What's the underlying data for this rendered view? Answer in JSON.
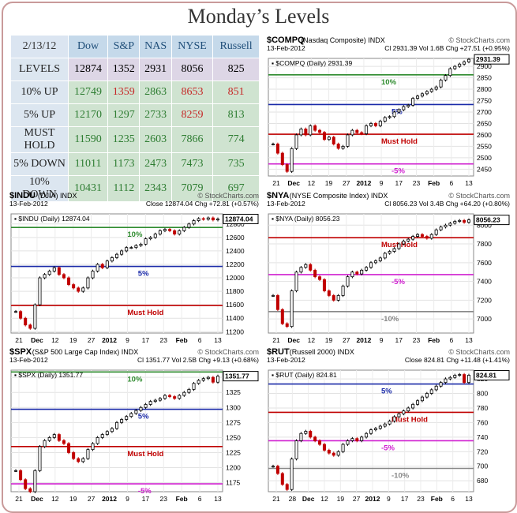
{
  "title": "Monday’s Levels",
  "table": {
    "date": "2/13/12",
    "columns": [
      "Dow",
      "S&P",
      "NAS",
      "NYSE",
      "Russell"
    ],
    "rows": [
      {
        "label": "LEVELS",
        "values": [
          "12874",
          "1352",
          "2931",
          "8056",
          "825"
        ],
        "colors": [
          "#000",
          "#000",
          "#000",
          "#000",
          "#000"
        ]
      },
      {
        "label": "10% UP",
        "values": [
          "12749",
          "1359",
          "2863",
          "8653",
          "851"
        ],
        "colors": [
          "#2e7d32",
          "#c62828",
          "#2e7d32",
          "#c62828",
          "#c62828"
        ]
      },
      {
        "label": "5% UP",
        "values": [
          "12170",
          "1297",
          "2733",
          "8259",
          "813"
        ],
        "colors": [
          "#2e7d32",
          "#2e7d32",
          "#2e7d32",
          "#c62828",
          "#2e7d32"
        ]
      },
      {
        "label": "MUST HOLD",
        "values": [
          "11590",
          "1235",
          "2603",
          "7866",
          "774"
        ],
        "colors": [
          "#2e7d32",
          "#2e7d32",
          "#2e7d32",
          "#2e7d32",
          "#2e7d32"
        ]
      },
      {
        "label": "5% DOWN",
        "values": [
          "11011",
          "1173",
          "2473",
          "7473",
          "735"
        ],
        "colors": [
          "#2e7d32",
          "#2e7d32",
          "#2e7d32",
          "#2e7d32",
          "#2e7d32"
        ]
      },
      {
        "label": "10% DOWN",
        "values": [
          "10431",
          "1112",
          "2343",
          "7079",
          "697"
        ],
        "colors": [
          "#2e7d32",
          "#2e7d32",
          "#2e7d32",
          "#2e7d32",
          "#2e7d32"
        ]
      }
    ]
  },
  "chart_data": [
    {
      "type": "line",
      "id": "compq",
      "title": "$COMPQ",
      "subtitle": "(Nasdaq Composite)",
      "suffix": "INDX",
      "brand": "© StockCharts.com",
      "date": "13-Feb-2012",
      "stats": "Cl 2931.39  Vol 1.6B  Chg +27.51 (+0.95%)",
      "legend": "$COMPQ (Daily) 2931.39",
      "last_value": "2931.39",
      "ylim": [
        2420,
        2935
      ],
      "yticks": [
        2450,
        2500,
        2550,
        2600,
        2650,
        2700,
        2750,
        2800,
        2850,
        2900
      ],
      "xticks": [
        "21",
        "Dec",
        "12",
        "19",
        "27",
        "2012",
        "9",
        "17",
        "23",
        "Feb",
        "6",
        "13"
      ],
      "levels": [
        {
          "label": "10%",
          "value": 2863,
          "color": "#2e8b2e"
        },
        {
          "label": "5%",
          "value": 2733,
          "color": "#1a2aa8"
        },
        {
          "label": "Must Hold",
          "value": 2603,
          "color": "#c00000"
        },
        {
          "label": "-5%",
          "value": 2473,
          "color": "#d020d0"
        }
      ],
      "series": [
        {
          "values": [
            2560,
            2520,
            2470,
            2440,
            2540,
            2600,
            2626,
            2600,
            2640,
            2620,
            2611,
            2580,
            2590,
            2560,
            2541,
            2550,
            2600,
            2620,
            2610,
            2605,
            2640,
            2650,
            2640,
            2660,
            2676,
            2680,
            2700,
            2710,
            2724,
            2730,
            2760,
            2770,
            2780,
            2790,
            2800,
            2810,
            2840,
            2860,
            2890,
            2900,
            2910,
            2920,
            2931
          ]
        }
      ]
    },
    {
      "type": "line",
      "id": "indu",
      "title": "$INDU",
      "subtitle": "(DJIA)",
      "suffix": "INDX",
      "brand": "© StockCharts.com",
      "date": "13-Feb-2012",
      "stats": "Close 12874.04  Chg +72.81 (+0.57%)",
      "legend": "$INDU (Daily) 12874.04",
      "last_value": "12874.04",
      "ylim": [
        11180,
        12950
      ],
      "yticks": [
        11200,
        11400,
        11600,
        11800,
        12000,
        12200,
        12400,
        12600,
        12800
      ],
      "xticks": [
        "21",
        "Dec",
        "12",
        "19",
        "27",
        "2012",
        "9",
        "17",
        "23",
        "Feb",
        "6",
        "13"
      ],
      "levels": [
        {
          "label": "10%",
          "value": 12749,
          "color": "#2e8b2e"
        },
        {
          "label": "5%",
          "value": 12170,
          "color": "#1a2aa8"
        },
        {
          "label": "Must Hold",
          "value": 11590,
          "color": "#c00000"
        }
      ],
      "series": [
        {
          "values": [
            11500,
            11400,
            11300,
            11250,
            11600,
            12000,
            12050,
            12100,
            12150,
            12050,
            12000,
            11900,
            11850,
            11800,
            11850,
            12000,
            12100,
            12200,
            12150,
            12250,
            12300,
            12350,
            12400,
            12450,
            12450,
            12480,
            12500,
            12580,
            12600,
            12650,
            12700,
            12720,
            12700,
            12650,
            12700,
            12750,
            12800,
            12850,
            12880,
            12870,
            12890,
            12860,
            12874
          ]
        }
      ]
    },
    {
      "type": "line",
      "id": "nya",
      "title": "$NYA",
      "subtitle": "(NYSE Composite Index)",
      "suffix": "INDX",
      "brand": "© StockCharts.com",
      "date": "13-Feb-2012",
      "stats": "Cl 8056.23  Vol 3.4B  Chg +64.20 (+0.80%)",
      "legend": "$NYA (Daily) 8056.23",
      "last_value": "8056.23",
      "ylim": [
        6850,
        8120
      ],
      "yticks": [
        7000,
        7200,
        7400,
        7600,
        7800,
        8000
      ],
      "xticks": [
        "21",
        "Dec",
        "12",
        "19",
        "27",
        "2012",
        "9",
        "17",
        "23",
        "Feb",
        "6",
        "13"
      ],
      "levels": [
        {
          "label": "Must Hold",
          "value": 7866,
          "color": "#c00000"
        },
        {
          "label": "-5%",
          "value": 7473,
          "color": "#d020d0"
        },
        {
          "label": "-10%",
          "value": 7079,
          "color": "#888888"
        }
      ],
      "series": [
        {
          "values": [
            7250,
            7100,
            6950,
            6920,
            7300,
            7500,
            7550,
            7580,
            7520,
            7450,
            7420,
            7300,
            7250,
            7200,
            7250,
            7350,
            7450,
            7500,
            7480,
            7520,
            7550,
            7600,
            7620,
            7650,
            7700,
            7720,
            7750,
            7800,
            7830,
            7850,
            7880,
            7900,
            7880,
            7860,
            7900,
            7950,
            7980,
            8000,
            8020,
            8040,
            8050,
            8030,
            8056
          ]
        }
      ]
    },
    {
      "type": "line",
      "id": "spx",
      "title": "$SPX",
      "subtitle": "(S&P 500 Large Cap Index)",
      "suffix": "INDX",
      "brand": "© StockCharts.com",
      "date": "13-Feb-2012",
      "stats": "Cl 1351.77  Vol 2.5B  Chg +9.13 (+0.68%)",
      "legend": "$SPX (Daily) 1351.77",
      "last_value": "1351.77",
      "ylim": [
        1160,
        1362
      ],
      "yticks": [
        1175,
        1200,
        1225,
        1250,
        1275,
        1300,
        1325,
        1350
      ],
      "xticks": [
        "21",
        "Dec",
        "12",
        "19",
        "27",
        "2012",
        "9",
        "17",
        "23",
        "Feb",
        "6",
        "13"
      ],
      "levels": [
        {
          "label": "10%",
          "value": 1359,
          "color": "#2e8b2e"
        },
        {
          "label": "5%",
          "value": 1297,
          "color": "#1a2aa8"
        },
        {
          "label": "Must Hold",
          "value": 1235,
          "color": "#c00000"
        },
        {
          "label": "-5%",
          "value": 1173,
          "color": "#d020d0"
        }
      ],
      "series": [
        {
          "values": [
            1195,
            1180,
            1165,
            1160,
            1195,
            1235,
            1245,
            1250,
            1255,
            1245,
            1240,
            1225,
            1215,
            1210,
            1215,
            1230,
            1240,
            1250,
            1255,
            1260,
            1265,
            1275,
            1280,
            1285,
            1290,
            1295,
            1300,
            1305,
            1310,
            1312,
            1315,
            1320,
            1318,
            1315,
            1320,
            1325,
            1330,
            1340,
            1345,
            1348,
            1350,
            1342,
            1352
          ]
        }
      ]
    },
    {
      "type": "line",
      "id": "rut",
      "title": "$RUT",
      "subtitle": "(Russell 2000)",
      "suffix": "INDX",
      "brand": "© StockCharts.com",
      "date": "13-Feb-2012",
      "stats": "Close 824.81  Chg +11.48 (+1.41%)",
      "legend": "$RUT (Daily) 824.81",
      "last_value": "824.81",
      "ylim": [
        665,
        832
      ],
      "yticks": [
        680,
        700,
        720,
        740,
        760,
        780,
        800,
        820
      ],
      "xticks": [
        "21",
        "28",
        "Dec",
        "12",
        "19",
        "27",
        "2012",
        "9",
        "17",
        "23",
        "Feb",
        "6",
        "13"
      ],
      "levels": [
        {
          "label": "5%",
          "value": 813,
          "color": "#1a2aa8"
        },
        {
          "label": "Must Hold",
          "value": 774,
          "color": "#c00000"
        },
        {
          "label": "-5%",
          "value": 735,
          "color": "#d020d0"
        },
        {
          "label": "-10%",
          "value": 697,
          "color": "#888888"
        }
      ],
      "series": [
        {
          "values": [
            700,
            690,
            675,
            668,
            710,
            735,
            745,
            748,
            740,
            735,
            730,
            722,
            718,
            715,
            720,
            730,
            735,
            738,
            735,
            740,
            745,
            750,
            752,
            755,
            758,
            762,
            768,
            772,
            776,
            780,
            785,
            790,
            795,
            800,
            805,
            810,
            815,
            820,
            822,
            825,
            826,
            815,
            825
          ]
        }
      ]
    }
  ]
}
